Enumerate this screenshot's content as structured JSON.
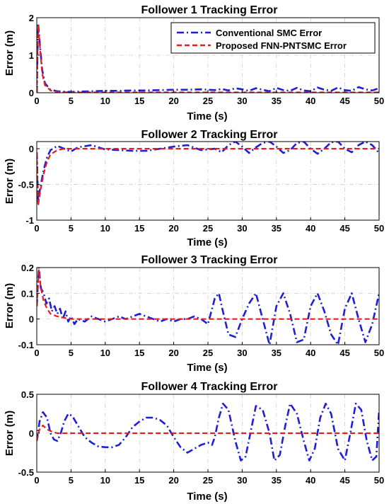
{
  "figure": {
    "background": "#ffffff"
  },
  "legend": {
    "entries": [
      {
        "label": "Conventional SMC Error",
        "color": "#1f1fd6",
        "dash": "dashdot"
      },
      {
        "label": "Proposed FNN-PNTSMC Error",
        "color": "#e01f1f",
        "dash": "dashed"
      }
    ],
    "placement": "top-right of Follower 1 panel"
  },
  "chart_data": [
    {
      "type": "line",
      "title": "Follower 1 Tracking Error",
      "xlabel": "Time (s)",
      "ylabel": "Error (m)",
      "xlim": [
        0,
        50
      ],
      "ylim": [
        0,
        2
      ],
      "xticks": [
        0,
        5,
        10,
        15,
        20,
        25,
        30,
        35,
        40,
        45,
        50
      ],
      "yticks": [
        0,
        1,
        2
      ],
      "grid": true,
      "series": [
        {
          "name": "Conventional SMC Error",
          "color": "#1f1fd6",
          "dash": "dashdot",
          "x": [
            0,
            0.2,
            0.5,
            0.8,
            1.2,
            2,
            3,
            4,
            5,
            6,
            8,
            10,
            12,
            14,
            16,
            18,
            20,
            22,
            24,
            26,
            27,
            28,
            29,
            30,
            31,
            32,
            33,
            34,
            35,
            36,
            37,
            38,
            39,
            40,
            41,
            42,
            43,
            44,
            45,
            46,
            47,
            48,
            49,
            50
          ],
          "y": [
            0,
            1.85,
            1.2,
            0.6,
            0.25,
            0.08,
            0.04,
            0.03,
            0.02,
            0.03,
            0.04,
            0.05,
            0.05,
            0.06,
            0.06,
            0.07,
            0.08,
            0.08,
            0.09,
            0.07,
            0.1,
            0.06,
            0.12,
            0.09,
            0.05,
            0.12,
            0.08,
            0.04,
            0.13,
            0.07,
            0.05,
            0.13,
            0.06,
            0.04,
            0.14,
            0.08,
            0.05,
            0.14,
            0.07,
            0.05,
            0.15,
            0.09,
            0.06,
            0.12
          ]
        },
        {
          "name": "Proposed FNN-PNTSMC Error",
          "color": "#e01f1f",
          "dash": "dashed",
          "x": [
            0,
            0.2,
            0.5,
            0.8,
            1.2,
            2,
            3,
            5,
            10,
            20,
            30,
            40,
            50
          ],
          "y": [
            0,
            1.8,
            1.15,
            0.5,
            0.2,
            0.06,
            0.02,
            0.01,
            0.01,
            0.01,
            0.01,
            0.01,
            0.01
          ]
        }
      ]
    },
    {
      "type": "line",
      "title": "Follower 2 Tracking Error",
      "xlabel": "Time (s)",
      "ylabel": "Error (m)",
      "xlim": [
        0,
        50
      ],
      "ylim": [
        -1,
        0.1
      ],
      "xticks": [
        0,
        5,
        10,
        15,
        20,
        25,
        30,
        35,
        40,
        45,
        50
      ],
      "yticks": [
        -1,
        -0.5,
        0
      ],
      "grid": true,
      "series": [
        {
          "name": "Conventional SMC Error",
          "color": "#1f1fd6",
          "dash": "dashdot",
          "x": [
            0,
            0.2,
            0.5,
            1,
            1.5,
            2,
            3,
            4,
            5,
            6,
            8,
            10,
            12,
            14,
            16,
            18,
            20,
            22,
            24,
            26,
            27,
            28,
            29,
            30,
            31,
            32,
            33,
            34,
            35,
            36,
            37,
            38,
            39,
            40,
            41,
            42,
            43,
            44,
            45,
            46,
            47,
            48,
            49,
            50
          ],
          "y": [
            -0.05,
            -0.75,
            -0.55,
            -0.3,
            -0.12,
            -0.02,
            0.04,
            0.0,
            -0.04,
            0.02,
            0.05,
            -0.01,
            -0.02,
            -0.03,
            -0.03,
            0.0,
            0.03,
            0.05,
            -0.02,
            0.0,
            -0.05,
            0.05,
            0.1,
            0.03,
            -0.06,
            0.02,
            0.08,
            0.1,
            0.03,
            -0.06,
            -0.02,
            0.08,
            0.1,
            0.0,
            -0.07,
            0.0,
            0.09,
            0.1,
            0.0,
            -0.05,
            0.05,
            0.1,
            0.05,
            -0.06
          ]
        },
        {
          "name": "Proposed FNN-PNTSMC Error",
          "color": "#e01f1f",
          "dash": "dashed",
          "x": [
            0,
            0.2,
            0.5,
            1,
            1.5,
            2,
            3,
            4,
            5,
            10,
            20,
            30,
            40,
            50
          ],
          "y": [
            -0.05,
            -0.8,
            -0.6,
            -0.35,
            -0.18,
            -0.08,
            -0.02,
            0.0,
            0.0,
            0.0,
            0.0,
            0.0,
            0.0,
            0.0
          ]
        }
      ]
    },
    {
      "type": "line",
      "title": "Follower 3 Tracking Error",
      "xlabel": "Time (s)",
      "ylabel": "Error (m)",
      "xlim": [
        0,
        50
      ],
      "ylim": [
        -0.1,
        0.2
      ],
      "xticks": [
        0,
        5,
        10,
        15,
        20,
        25,
        30,
        35,
        40,
        45,
        50
      ],
      "yticks": [
        -0.1,
        0,
        0.1,
        0.2
      ],
      "grid": true,
      "series": [
        {
          "name": "Conventional SMC Error",
          "color": "#1f1fd6",
          "dash": "dashdot",
          "x": [
            0,
            0.3,
            0.6,
            1,
            1.4,
            1.8,
            2.2,
            2.6,
            3,
            3.4,
            3.8,
            4.2,
            4.6,
            5,
            5.5,
            6,
            7,
            8,
            9,
            10,
            11,
            12,
            13,
            14,
            15,
            16,
            17,
            18,
            19,
            20,
            21,
            22,
            23,
            24,
            25,
            25.5,
            26,
            26.6,
            27,
            28,
            29,
            30,
            31,
            32,
            33,
            34,
            35,
            36,
            37,
            38,
            39,
            40,
            41,
            42,
            43,
            44,
            45,
            46,
            47,
            48,
            49,
            50
          ],
          "y": [
            0.05,
            0.2,
            0.12,
            0.1,
            0.06,
            0.08,
            0.03,
            0.05,
            0.02,
            0.04,
            0.0,
            0.03,
            -0.01,
            0.01,
            -0.02,
            0.0,
            -0.01,
            0.01,
            0.0,
            -0.01,
            0.0,
            0.01,
            0.0,
            0.01,
            0.02,
            0.01,
            0.0,
            -0.01,
            0.0,
            -0.01,
            0.0,
            0.0,
            0.01,
            0.0,
            -0.02,
            0.03,
            0.08,
            0.1,
            0.05,
            -0.06,
            -0.07,
            0.0,
            0.06,
            0.1,
            0.0,
            -0.1,
            0.05,
            0.1,
            0.02,
            -0.09,
            -0.08,
            0.05,
            0.1,
            0.03,
            -0.06,
            -0.1,
            0.04,
            0.1,
            0.0,
            -0.09,
            -0.02,
            0.1
          ]
        },
        {
          "name": "Proposed FNN-PNTSMC Error",
          "color": "#e01f1f",
          "dash": "dashed",
          "x": [
            0,
            0.3,
            0.6,
            1,
            1.5,
            2,
            3,
            4,
            5,
            10,
            20,
            25,
            30,
            40,
            50
          ],
          "y": [
            0.05,
            0.19,
            0.12,
            0.07,
            0.04,
            0.02,
            0.01,
            0.005,
            0.0,
            0.0,
            0.0,
            0.0,
            0.0,
            0.0,
            0.0
          ]
        }
      ]
    },
    {
      "type": "line",
      "title": "Follower 4 Tracking Error",
      "xlabel": "Time (s)",
      "ylabel": "Error (m)",
      "xlim": [
        0,
        50
      ],
      "ylim": [
        -0.5,
        0.5
      ],
      "xticks": [
        0,
        5,
        10,
        15,
        20,
        25,
        30,
        35,
        40,
        45,
        50
      ],
      "yticks": [
        -0.5,
        0,
        0.5
      ],
      "grid": true,
      "series": [
        {
          "name": "Conventional SMC Error",
          "color": "#1f1fd6",
          "dash": "dashdot",
          "x": [
            0,
            0.4,
            0.9,
            1.5,
            2,
            2.5,
            3,
            3.5,
            4,
            4.6,
            5.2,
            6,
            7,
            8,
            9,
            10,
            11,
            12,
            13,
            14,
            15,
            16,
            17,
            18,
            19,
            20,
            21,
            22,
            23,
            24,
            25,
            25.6,
            26,
            26.6,
            27.2,
            28,
            29,
            29.8,
            30.5,
            31.2,
            32,
            33,
            34,
            34.7,
            35.5,
            36.3,
            37,
            38,
            39,
            39.8,
            40.6,
            41.4,
            42.2,
            43,
            44,
            45,
            45.8,
            46.6,
            47.4,
            48.2,
            49,
            49.6,
            50
          ],
          "y": [
            -0.1,
            0.15,
            0.27,
            0.2,
            0.0,
            -0.08,
            -0.1,
            0.0,
            0.15,
            0.25,
            0.22,
            0.1,
            -0.05,
            -0.12,
            -0.17,
            -0.18,
            -0.18,
            -0.15,
            -0.05,
            0.08,
            0.15,
            0.2,
            0.2,
            0.17,
            0.1,
            -0.05,
            -0.18,
            -0.25,
            -0.2,
            -0.15,
            -0.12,
            -0.15,
            -0.05,
            0.2,
            0.38,
            0.3,
            -0.1,
            -0.35,
            -0.3,
            0.0,
            0.35,
            0.3,
            0.0,
            -0.35,
            -0.28,
            0.1,
            0.38,
            0.25,
            -0.1,
            -0.35,
            -0.2,
            0.2,
            0.38,
            0.25,
            -0.2,
            -0.35,
            0.0,
            0.38,
            0.3,
            -0.1,
            -0.35,
            -0.3,
            0.3
          ]
        },
        {
          "name": "Proposed FNN-PNTSMC Error",
          "color": "#e01f1f",
          "dash": "dashed",
          "x": [
            0,
            0.4,
            0.9,
            1.5,
            2.2,
            3,
            4,
            5,
            10,
            20,
            30,
            40,
            50
          ],
          "y": [
            -0.1,
            0.05,
            0.1,
            0.05,
            0.02,
            0.0,
            0.0,
            0.0,
            0.0,
            0.0,
            0.0,
            0.0,
            0.0
          ]
        }
      ]
    }
  ]
}
